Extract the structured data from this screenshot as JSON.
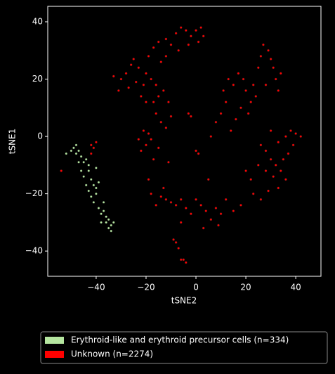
{
  "chart_data": {
    "type": "scatter",
    "x_label": "tSNE2",
    "y_label": "tSNE1",
    "xlim": [
      -59.4,
      50.1
    ],
    "ylim": [
      -48.8,
      45.4
    ],
    "xticks": [
      {
        "value": -40,
        "label": "−40"
      },
      {
        "value": -20,
        "label": "−20"
      },
      0,
      20,
      40
    ],
    "yticks": [
      {
        "value": -40,
        "label": "−40"
      },
      {
        "value": -20,
        "label": "−20"
      },
      0,
      20,
      40
    ],
    "legend": "below",
    "series": [
      {
        "name": "Erythroid-like and erythroid precursor cells (n=334)",
        "color": "#b5e6a0",
        "x": [
          -52,
          -50,
          -49,
          -48,
          -47,
          -46,
          -45,
          -44,
          -46,
          -45,
          -43,
          -42,
          -44,
          -43,
          -41,
          -42,
          -40,
          -41,
          -40,
          -39,
          -39,
          -38,
          -37,
          -36,
          -38,
          -36,
          -35,
          -34,
          -33,
          -34,
          -35,
          -37,
          -47,
          -48,
          -43,
          -40
        ],
        "y": [
          -6,
          -5,
          -4,
          -6,
          -5,
          -7,
          -9,
          -8,
          -12,
          -14,
          -12,
          -15,
          -17,
          -19,
          -17,
          -21,
          -20,
          -23,
          -11,
          -16,
          -25,
          -27,
          -26,
          -28,
          -30,
          -30,
          -32,
          -31,
          -30,
          -33,
          -29,
          -23,
          -9,
          -3,
          -10,
          -18
        ]
      },
      {
        "name": "Unknown (n=2274)",
        "color": "#ff0000",
        "x": [
          -42,
          -41,
          -42,
          -54,
          -40,
          -33,
          -30,
          -28,
          -26,
          -25,
          -23,
          -24,
          -21,
          -20,
          -18,
          -16,
          -15,
          -17,
          -16,
          -14,
          -12,
          -10,
          -11,
          -13,
          -20,
          -22,
          -27,
          -31,
          -19,
          -17,
          -15,
          -12,
          -10,
          -8,
          -6,
          -4,
          -2,
          0,
          2,
          3,
          1,
          -3,
          -7,
          -12,
          -14,
          -23,
          -21,
          -20,
          -22,
          -19,
          -18,
          -15,
          8,
          10,
          12,
          11,
          13,
          15,
          17,
          19,
          20,
          22,
          23,
          25,
          26,
          27,
          29,
          30,
          31,
          32,
          33,
          34,
          28,
          24,
          21,
          18,
          16,
          14,
          30,
          33,
          36,
          38,
          40,
          42,
          39,
          37,
          35,
          32,
          30,
          28,
          26,
          25,
          28,
          31,
          34,
          36,
          33,
          29,
          26,
          23,
          22,
          20,
          18,
          15,
          12,
          10,
          8,
          6,
          4,
          2,
          0,
          -2,
          -4,
          -6,
          -8,
          -10,
          -12,
          -14,
          -16,
          -18,
          -13,
          -6,
          3,
          9,
          -8,
          -7,
          -9,
          -5,
          -4,
          -6,
          0,
          1,
          -3,
          -2,
          -17,
          -19,
          -11,
          6,
          5
        ],
        "y": [
          -3,
          -4,
          -6,
          -12,
          -2,
          21,
          20,
          22,
          25,
          27,
          24,
          19,
          18,
          22,
          20,
          18,
          14,
          12,
          8,
          5,
          3,
          7,
          12,
          16,
          12,
          14,
          17,
          16,
          28,
          31,
          33,
          34,
          32,
          36,
          38,
          37,
          35,
          37,
          38,
          35,
          33,
          32,
          30,
          28,
          26,
          -1,
          2,
          -3,
          -5,
          1,
          -1,
          -4,
          5,
          8,
          12,
          16,
          20,
          18,
          22,
          20,
          16,
          12,
          18,
          24,
          28,
          32,
          30,
          27,
          24,
          20,
          16,
          22,
          18,
          14,
          8,
          10,
          6,
          2,
          2,
          -2,
          0,
          2,
          1,
          0,
          -3,
          -6,
          -8,
          -10,
          -8,
          -5,
          -3,
          -10,
          -12,
          -14,
          -12,
          -15,
          -18,
          -19,
          -22,
          -20,
          -15,
          -12,
          -24,
          -26,
          -22,
          -27,
          -25,
          -29,
          -26,
          -24,
          -22,
          -27,
          -25,
          -22,
          -24,
          -23,
          -22,
          -21,
          -24,
          -20,
          -18,
          -30,
          -32,
          -31,
          -37,
          -39,
          -36,
          -43,
          -44,
          -43,
          -5,
          -6,
          8,
          7,
          -8,
          -15,
          -9,
          0,
          -15
        ]
      }
    ]
  }
}
